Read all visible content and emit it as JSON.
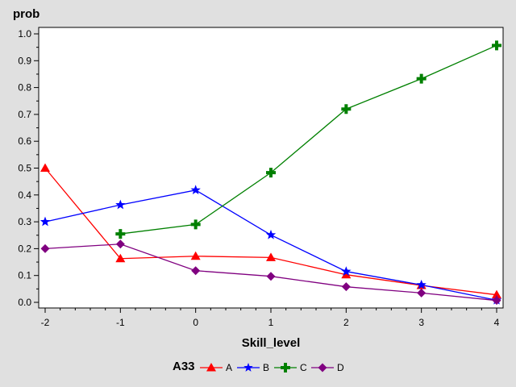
{
  "chart_data": {
    "type": "line",
    "title": "",
    "xlabel": "Skill_level",
    "ylabel": "prob",
    "x": [
      -2,
      -1,
      0,
      1,
      2,
      3,
      4
    ],
    "xlim": [
      -2,
      4
    ],
    "ylim": [
      0,
      1.0
    ],
    "x_ticks": [
      "-2",
      "-1",
      "0",
      "1",
      "2",
      "3",
      "4"
    ],
    "y_ticks": [
      "0.0",
      "0.1",
      "0.2",
      "0.3",
      "0.4",
      "0.5",
      "0.6",
      "0.7",
      "0.8",
      "0.9",
      "1.0"
    ],
    "grid": false,
    "legend": {
      "title": "A33",
      "position": "bottom"
    },
    "series": [
      {
        "name": "A",
        "color": "#ff0000",
        "marker": "triangle",
        "points": [
          {
            "x": -2,
            "y": 0.5
          },
          {
            "x": -1,
            "y": 0.163
          },
          {
            "x": 0,
            "y": 0.172
          },
          {
            "x": 1,
            "y": 0.167
          },
          {
            "x": 2,
            "y": 0.103
          },
          {
            "x": 3,
            "y": 0.063
          },
          {
            "x": 4,
            "y": 0.028
          }
        ]
      },
      {
        "name": "B",
        "color": "#0000ff",
        "marker": "star",
        "points": [
          {
            "x": -2,
            "y": 0.3
          },
          {
            "x": -1,
            "y": 0.363
          },
          {
            "x": 0,
            "y": 0.418
          },
          {
            "x": 1,
            "y": 0.251
          },
          {
            "x": 2,
            "y": 0.115
          },
          {
            "x": 3,
            "y": 0.065
          },
          {
            "x": 4,
            "y": 0.008
          }
        ]
      },
      {
        "name": "C",
        "color": "#008000",
        "marker": "plus",
        "points": [
          {
            "x": -1,
            "y": 0.255
          },
          {
            "x": 0,
            "y": 0.29
          },
          {
            "x": 1,
            "y": 0.483
          },
          {
            "x": 2,
            "y": 0.72
          },
          {
            "x": 3,
            "y": 0.833
          },
          {
            "x": 4,
            "y": 0.957
          }
        ]
      },
      {
        "name": "D",
        "color": "#800080",
        "marker": "diamond",
        "points": [
          {
            "x": -2,
            "y": 0.2
          },
          {
            "x": -1,
            "y": 0.217
          },
          {
            "x": 0,
            "y": 0.118
          },
          {
            "x": 1,
            "y": 0.097
          },
          {
            "x": 2,
            "y": 0.058
          },
          {
            "x": 3,
            "y": 0.035
          },
          {
            "x": 4,
            "y": 0.007
          }
        ]
      }
    ]
  }
}
